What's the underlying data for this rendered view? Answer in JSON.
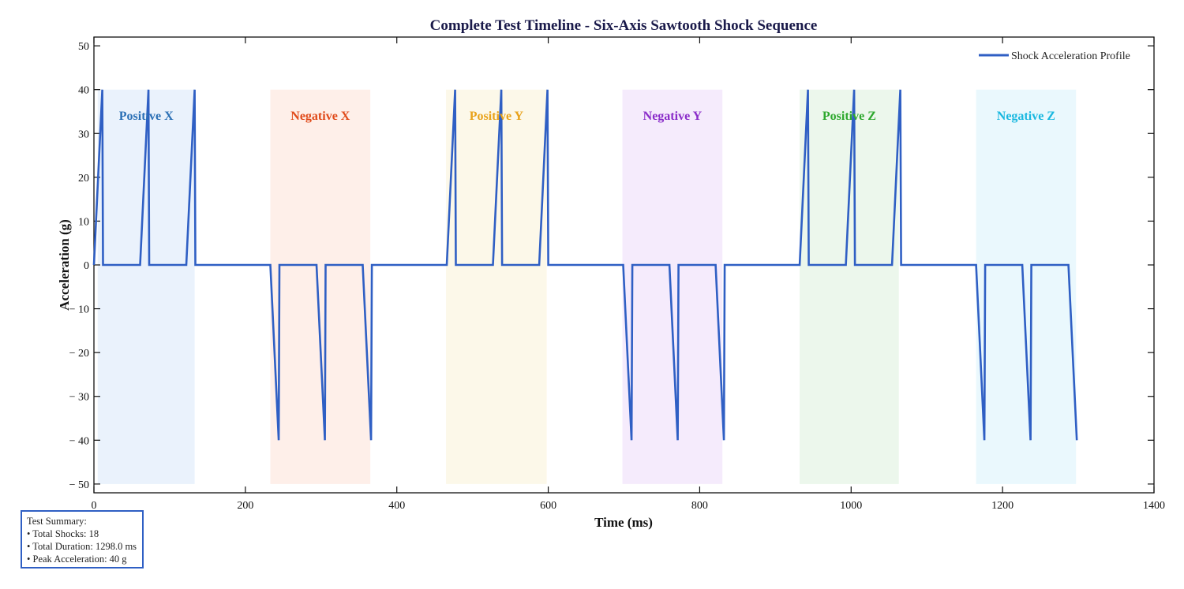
{
  "chart_data": {
    "type": "line",
    "title": "Complete Test Timeline - Six-Axis Sawtooth Shock Sequence",
    "xlabel": "Time (ms)",
    "ylabel": "Acceleration (g)",
    "xlim": [
      0,
      1400
    ],
    "ylim": [
      -52,
      52
    ],
    "xticks": [
      0,
      200,
      400,
      600,
      800,
      1000,
      1200,
      1400
    ],
    "yticks": [
      50,
      40,
      30,
      20,
      10,
      0,
      -10,
      -20,
      -30,
      -40,
      -50
    ],
    "xtick_labels": [
      "0",
      "200",
      "400",
      "600",
      "800",
      "1000",
      "1200",
      "1400"
    ],
    "ytick_labels": [
      "50",
      "40",
      "30",
      "20",
      "10",
      "0",
      "− 10",
      "− 20",
      "− 30",
      "− 40",
      "− 50"
    ],
    "grid": false,
    "legend": {
      "placement": "top-right",
      "entries": [
        "Shock Acceleration Profile"
      ]
    },
    "line_color": "#2f5fc4",
    "regions": [
      {
        "label": "Positive X",
        "x_start": 5,
        "x_end": 133,
        "sign": 1,
        "color": "#2a6fb5",
        "fill": "#e3eefb"
      },
      {
        "label": "Negative X",
        "x_start": 233,
        "x_end": 365,
        "sign": -1,
        "color": "#e04a1a",
        "fill": "#fde9e2"
      },
      {
        "label": "Positive Y",
        "x_start": 465,
        "x_end": 598,
        "sign": 1,
        "color": "#e8a21a",
        "fill": "#fbf6e2"
      },
      {
        "label": "Negative Y",
        "x_start": 698,
        "x_end": 830,
        "sign": -1,
        "color": "#8a2cc9",
        "fill": "#f1e4fb"
      },
      {
        "label": "Positive Z",
        "x_start": 932,
        "x_end": 1063,
        "sign": 1,
        "color": "#2ea82e",
        "fill": "#e5f4e5"
      },
      {
        "label": "Negative Z",
        "x_start": 1165,
        "x_end": 1297,
        "sign": -1,
        "color": "#1ab8e0",
        "fill": "#e3f6fc"
      }
    ],
    "series": [
      {
        "name": "Shock Acceleration Profile",
        "x": [
          0,
          11,
          12,
          61,
          72,
          73,
          122,
          133,
          134,
          233,
          244,
          245,
          294,
          305,
          306,
          355,
          366,
          367,
          466,
          477,
          478,
          527,
          538,
          539,
          588,
          599,
          600,
          699,
          710,
          711,
          760,
          771,
          772,
          821,
          832,
          833,
          932,
          943,
          944,
          993,
          1004,
          1005,
          1054,
          1065,
          1066,
          1165,
          1176,
          1177,
          1226,
          1237,
          1238,
          1287,
          1298
        ],
        "y": [
          0,
          40,
          0,
          0,
          40,
          0,
          0,
          40,
          0,
          0,
          -40,
          0,
          0,
          -40,
          0,
          0,
          -40,
          0,
          0,
          40,
          0,
          0,
          40,
          0,
          0,
          40,
          0,
          0,
          -40,
          0,
          0,
          -40,
          0,
          0,
          -40,
          0,
          0,
          40,
          0,
          0,
          40,
          0,
          0,
          40,
          0,
          0,
          -40,
          0,
          0,
          -40,
          0,
          0,
          -40
        ]
      }
    ]
  },
  "summary": {
    "heading": "Test Summary:",
    "total_shocks": "• Total Shocks: 18",
    "total_duration": "• Total Duration: 1298.0 ms",
    "peak_acceleration": "• Peak Acceleration: 40 g"
  }
}
